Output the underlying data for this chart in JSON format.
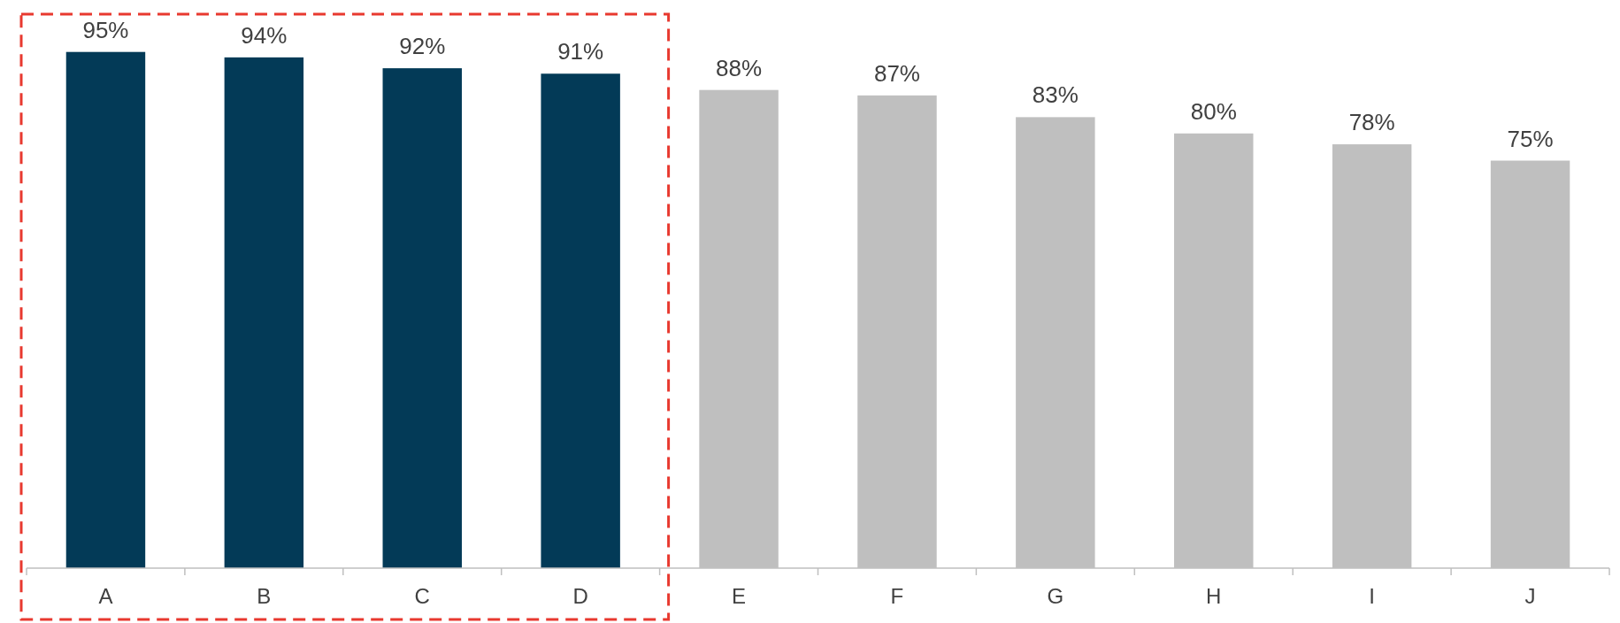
{
  "chart_data": {
    "type": "bar",
    "categories": [
      "A",
      "B",
      "C",
      "D",
      "E",
      "F",
      "G",
      "H",
      "I",
      "J"
    ],
    "values": [
      95,
      94,
      92,
      91,
      88,
      87,
      83,
      80,
      78,
      75
    ],
    "colors": [
      "#033a57",
      "#033a57",
      "#033a57",
      "#033a57",
      "#bfbfbf",
      "#bfbfbf",
      "#bfbfbf",
      "#bfbfbf",
      "#bfbfbf",
      "#bfbfbf"
    ],
    "value_labels": [
      "95%",
      "94%",
      "92%",
      "91%",
      "88%",
      "87%",
      "83%",
      "80%",
      "78%",
      "75%"
    ]
  }
}
